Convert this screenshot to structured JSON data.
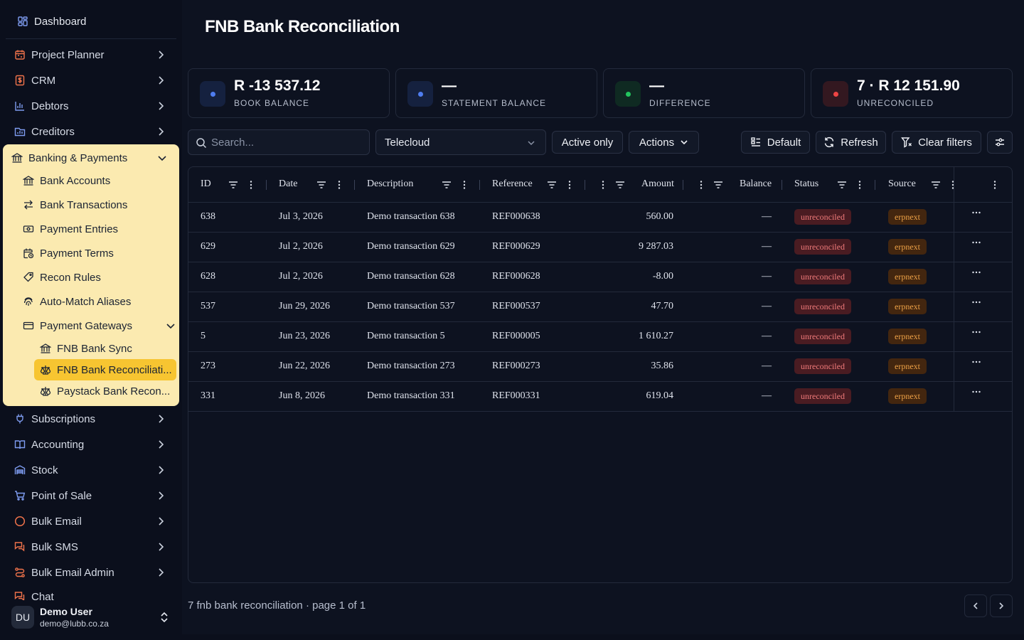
{
  "sidebar": {
    "dashboard": "Dashboard",
    "items_top": [
      {
        "label": "Project Planner",
        "icon": "calendar-icon",
        "color": "#f0734b"
      },
      {
        "label": "CRM",
        "icon": "dollar-icon",
        "color": "#f0734b"
      },
      {
        "label": "Debtors",
        "icon": "bar-chart-icon",
        "color": "#7e9cf0"
      },
      {
        "label": "Creditors",
        "icon": "folder-chart-icon",
        "color": "#7e9cf0"
      }
    ],
    "group": {
      "label": "Banking & Payments",
      "items": [
        {
          "label": "Bank Accounts",
          "icon": "bank-icon"
        },
        {
          "label": "Bank Transactions",
          "icon": "arrows-icon"
        },
        {
          "label": "Payment Entries",
          "icon": "banknote-icon"
        },
        {
          "label": "Payment Terms",
          "icon": "calendar-clock-icon"
        },
        {
          "label": "Recon Rules",
          "icon": "tag-icon"
        },
        {
          "label": "Auto-Match Aliases",
          "icon": "fingerprint-icon"
        },
        {
          "label": "Payment Gateways",
          "icon": "card-icon"
        }
      ],
      "sub_items": [
        {
          "label": "FNB Bank Sync",
          "icon": "bank-icon"
        },
        {
          "label": "FNB Bank Reconciliati...",
          "icon": "scale-icon"
        },
        {
          "label": "Paystack Bank Recon...",
          "icon": "scale-icon"
        }
      ]
    },
    "items_bottom": [
      {
        "label": "Subscriptions",
        "icon": "plug-icon",
        "color": "#7e9cf0"
      },
      {
        "label": "Accounting",
        "icon": "book-icon",
        "color": "#7e9cf0"
      },
      {
        "label": "Stock",
        "icon": "warehouse-icon",
        "color": "#7e9cf0"
      },
      {
        "label": "Point of Sale",
        "icon": "cart-icon",
        "color": "#7e9cf0"
      },
      {
        "label": "Bulk Email",
        "icon": "circle-icon",
        "color": "#f0734b"
      },
      {
        "label": "Bulk SMS",
        "icon": "chat-icon",
        "color": "#f0734b"
      },
      {
        "label": "Bulk Email Admin",
        "icon": "route-icon",
        "color": "#f0734b"
      },
      {
        "label": "Chat",
        "icon": "chat-icon",
        "color": "#f0734b"
      }
    ],
    "user": {
      "initials": "DU",
      "name": "Demo User",
      "email": "demo@lubb.co.za"
    }
  },
  "page": {
    "title": "FNB Bank Reconciliation"
  },
  "cards": [
    {
      "value": "R -13 537.12",
      "label": "BOOK BALANCE",
      "dot": "#4f7df0",
      "bg": "#15213f"
    },
    {
      "value": "—",
      "label": "STATEMENT BALANCE",
      "dot": "#4f7df0",
      "bg": "#15213f"
    },
    {
      "value": "—",
      "label": "DIFFERENCE",
      "dot": "#22c55e",
      "bg": "#0f2a22"
    },
    {
      "value": "7 · R 12 151.90",
      "label": "UNRECONCILED",
      "dot": "#ef4444",
      "bg": "#331820"
    }
  ],
  "toolbar": {
    "search_placeholder": "Search...",
    "company": "Telecloud",
    "active_only": "Active only",
    "actions": "Actions",
    "default": "Default",
    "refresh": "Refresh",
    "clear_filters": "Clear filters"
  },
  "table": {
    "columns": [
      "ID",
      "Date",
      "Description",
      "Reference",
      "Amount",
      "Balance",
      "Status",
      "Source"
    ],
    "rows": [
      {
        "id": "638",
        "date": "Jul 3, 2026",
        "description": "Demo transaction 638",
        "reference": "REF000638",
        "amount": "560.00",
        "balance": "—",
        "status": "unreconciled",
        "source": "erpnext"
      },
      {
        "id": "629",
        "date": "Jul 2, 2026",
        "description": "Demo transaction 629",
        "reference": "REF000629",
        "amount": "9 287.03",
        "balance": "—",
        "status": "unreconciled",
        "source": "erpnext"
      },
      {
        "id": "628",
        "date": "Jul 2, 2026",
        "description": "Demo transaction 628",
        "reference": "REF000628",
        "amount": "-8.00",
        "balance": "—",
        "status": "unreconciled",
        "source": "erpnext"
      },
      {
        "id": "537",
        "date": "Jun 29, 2026",
        "description": "Demo transaction 537",
        "reference": "REF000537",
        "amount": "47.70",
        "balance": "—",
        "status": "unreconciled",
        "source": "erpnext"
      },
      {
        "id": "5",
        "date": "Jun 23, 2026",
        "description": "Demo transaction 5",
        "reference": "REF000005",
        "amount": "1 610.27",
        "balance": "—",
        "status": "unreconciled",
        "source": "erpnext"
      },
      {
        "id": "273",
        "date": "Jun 22, 2026",
        "description": "Demo transaction 273",
        "reference": "REF000273",
        "amount": "35.86",
        "balance": "—",
        "status": "unreconciled",
        "source": "erpnext"
      },
      {
        "id": "331",
        "date": "Jun 8, 2026",
        "description": "Demo transaction 331",
        "reference": "REF000331",
        "amount": "619.04",
        "balance": "—",
        "status": "unreconciled",
        "source": "erpnext"
      }
    ]
  },
  "footer": {
    "summary": "7 fnb bank reconciliation · page 1 of 1"
  }
}
